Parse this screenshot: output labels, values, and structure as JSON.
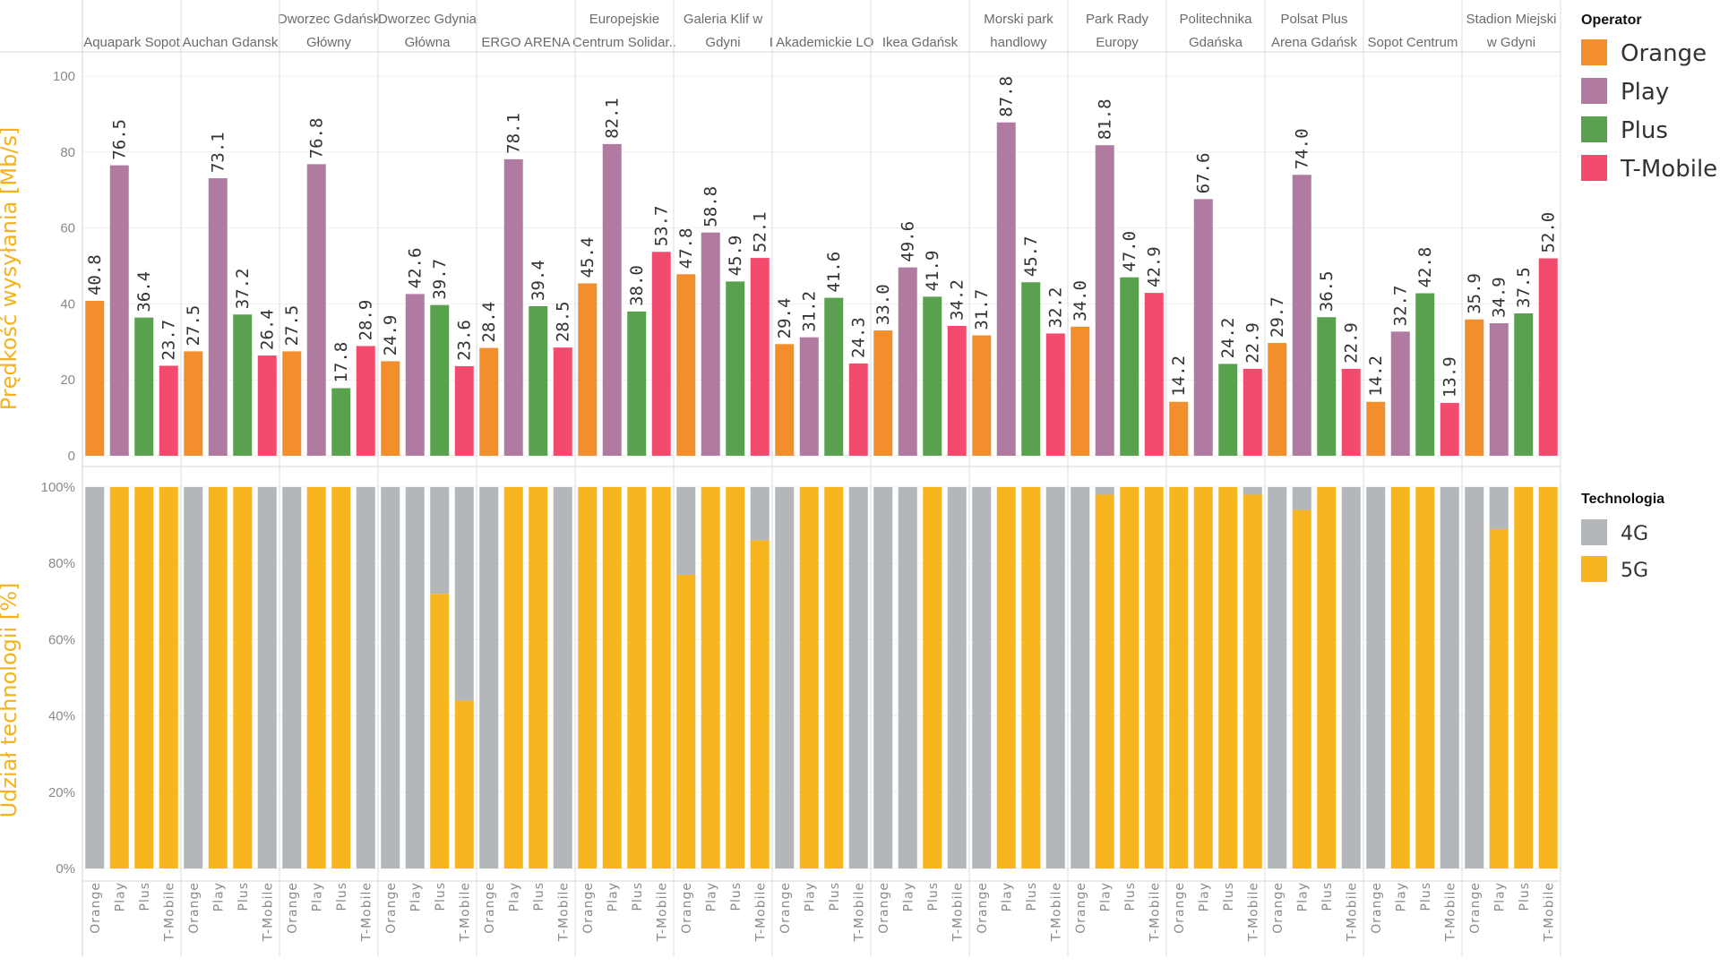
{
  "chart_data": [
    {
      "type": "bar",
      "title": "",
      "ylabel": "Prędkość wysyłania [Mb/s]",
      "ylim": [
        0,
        100
      ],
      "yticks": [
        "0",
        "20",
        "40",
        "60",
        "80",
        "100"
      ],
      "grid": true,
      "legend": {
        "title": "Operator",
        "placement": "right-top",
        "entries": [
          {
            "name": "Orange",
            "color": "#f28e2b"
          },
          {
            "name": "Play",
            "color": "#b07aa1"
          },
          {
            "name": "Plus",
            "color": "#59a14f"
          },
          {
            "name": "T-Mobile",
            "color": "#f24b6e"
          }
        ]
      },
      "categories": [
        "Aquapark Sopot",
        "Auchan Gdansk",
        "Dworzec Gdańsk Główny",
        "Dworzec Gdynia Główna",
        "ERGO ARENA",
        "Europejskie Centrum Solidar..",
        "Galeria Klif w Gdyni",
        "I Akademickie LO",
        "Ikea Gdańsk",
        "Morski park handlowy",
        "Park Rady Europy",
        "Politechnika Gdańska",
        "Polsat Plus Arena Gdańsk",
        "Sopot Centrum",
        "Stadion Miejski w Gdyni"
      ],
      "category_header_lines": [
        [
          "",
          "Aquapark Sopot"
        ],
        [
          "",
          "Auchan Gdansk"
        ],
        [
          "Dworzec Gdańsk",
          "Główny"
        ],
        [
          "Dworzec Gdynia",
          "Główna"
        ],
        [
          "",
          "ERGO ARENA"
        ],
        [
          "Europejskie",
          "Centrum Solidar.."
        ],
        [
          "Galeria Klif w",
          "Gdyni"
        ],
        [
          "",
          "I Akademickie LO"
        ],
        [
          "",
          "Ikea Gdańsk"
        ],
        [
          "Morski park",
          "handlowy"
        ],
        [
          "Park Rady",
          "Europy"
        ],
        [
          "Politechnika",
          "Gdańska"
        ],
        [
          "Polsat Plus",
          "Arena Gdańsk"
        ],
        [
          "",
          "Sopot Centrum"
        ],
        [
          "Stadion Miejski",
          "w Gdyni"
        ]
      ],
      "series": [
        {
          "name": "Orange",
          "values": [
            40.8,
            27.5,
            27.5,
            24.9,
            28.4,
            45.4,
            47.8,
            29.4,
            33.0,
            31.7,
            34.0,
            14.2,
            29.7,
            14.2,
            35.9
          ]
        },
        {
          "name": "Play",
          "values": [
            76.5,
            73.1,
            76.8,
            42.6,
            78.1,
            82.1,
            58.8,
            31.2,
            49.6,
            87.8,
            81.8,
            67.6,
            74.0,
            32.7,
            34.9
          ]
        },
        {
          "name": "Plus",
          "values": [
            36.4,
            37.2,
            17.8,
            39.7,
            39.4,
            38.0,
            45.9,
            41.6,
            41.9,
            45.7,
            47.0,
            24.2,
            36.5,
            42.8,
            37.5
          ]
        },
        {
          "name": "T-Mobile",
          "values": [
            23.7,
            26.4,
            28.9,
            23.6,
            28.5,
            53.7,
            52.1,
            24.3,
            34.2,
            32.2,
            42.9,
            22.9,
            22.9,
            13.9,
            52.0
          ]
        }
      ]
    },
    {
      "type": "bar",
      "stacked": true,
      "title": "",
      "ylabel": "Udział technologii [%]",
      "ylim": [
        0,
        100
      ],
      "yticks": [
        "0%",
        "20%",
        "40%",
        "60%",
        "80%",
        "100%"
      ],
      "grid": true,
      "legend": {
        "title": "Technologia",
        "placement": "right-middle",
        "entries": [
          {
            "name": "4G",
            "color": "#b4b7ba"
          },
          {
            "name": "5G",
            "color": "#f7b620"
          }
        ]
      },
      "x_labels": [
        "Orange",
        "Play",
        "Plus",
        "T-Mobile"
      ],
      "categories": [
        "Aquapark Sopot",
        "Auchan Gdansk",
        "Dworzec Gdańsk Główny",
        "Dworzec Gdynia Główna",
        "ERGO ARENA",
        "Europejskie Centrum Solidar..",
        "Galeria Klif w Gdyni",
        "I Akademickie LO",
        "Ikea Gdańsk",
        "Morski park handlowy",
        "Park Rady Europy",
        "Politechnika Gdańska",
        "Polsat Plus Arena Gdańsk",
        "Sopot Centrum",
        "Stadion Miejski w Gdyni"
      ],
      "series_5g_percent": [
        {
          "name": "Orange",
          "values": [
            0,
            0,
            0,
            0,
            0,
            100,
            77,
            0,
            0,
            0,
            0,
            100,
            0,
            0,
            0
          ]
        },
        {
          "name": "Play",
          "values": [
            100,
            100,
            100,
            0,
            100,
            100,
            100,
            100,
            0,
            100,
            98,
            100,
            94,
            100,
            89
          ]
        },
        {
          "name": "Plus",
          "values": [
            100,
            100,
            100,
            72,
            100,
            100,
            100,
            100,
            100,
            100,
            100,
            100,
            100,
            100,
            100
          ]
        },
        {
          "name": "T-Mobile",
          "values": [
            100,
            0,
            0,
            44,
            0,
            100,
            86,
            0,
            0,
            0,
            100,
            98,
            0,
            0,
            100
          ]
        }
      ]
    }
  ]
}
